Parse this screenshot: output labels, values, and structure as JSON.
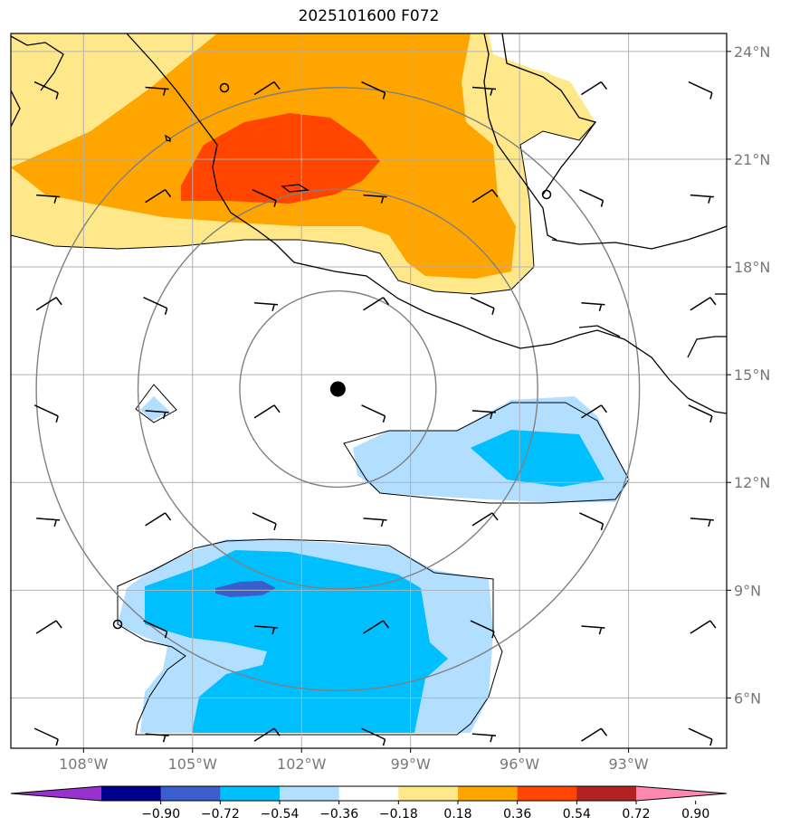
{
  "title": "2025101600 F072",
  "storm_marker": {
    "lat": 14.6,
    "lon": -101.0,
    "label": ""
  },
  "map_extent": {
    "lon_min": -110.0,
    "lon_max": -90.3,
    "lat_min": 4.6,
    "lat_max": 24.5
  },
  "lat_ticks": [
    {
      "value": 24,
      "label": "24°N"
    },
    {
      "value": 21,
      "label": "21°N"
    },
    {
      "value": 18,
      "label": "18°N"
    },
    {
      "value": 15,
      "label": "15°N"
    },
    {
      "value": 12,
      "label": "12°N"
    },
    {
      "value": 9,
      "label": "9°N"
    },
    {
      "value": 6,
      "label": "6°N"
    }
  ],
  "lon_ticks": [
    {
      "value": -108,
      "label": "108°W"
    },
    {
      "value": -105,
      "label": "105°W"
    },
    {
      "value": -102,
      "label": "102°W"
    },
    {
      "value": -99,
      "label": "99°W"
    },
    {
      "value": -96,
      "label": "96°W"
    },
    {
      "value": -93,
      "label": "93°W"
    }
  ],
  "range_rings_deg": [
    2.7,
    5.5,
    8.3
  ],
  "colorbar": {
    "colors": [
      "#9932cc",
      "#00008b",
      "#3a5fcd",
      "#00bfff",
      "#b2dfff",
      "#ffffff",
      "#ffe88a",
      "#ffa500",
      "#ff4500",
      "#b22222",
      "#ff88b0"
    ],
    "labels": [
      "−0.90",
      "−0.72",
      "−0.54",
      "−0.36",
      "−0.18",
      "0.18",
      "0.36",
      "0.54",
      "0.72",
      "0.90"
    ],
    "legend_placement": "bottom"
  },
  "wind_barbs": {
    "lons": [
      -109,
      -106,
      -103,
      -100,
      -97,
      -94,
      -91
    ],
    "lats": [
      23,
      20,
      17,
      14,
      11,
      8,
      5
    ]
  }
}
